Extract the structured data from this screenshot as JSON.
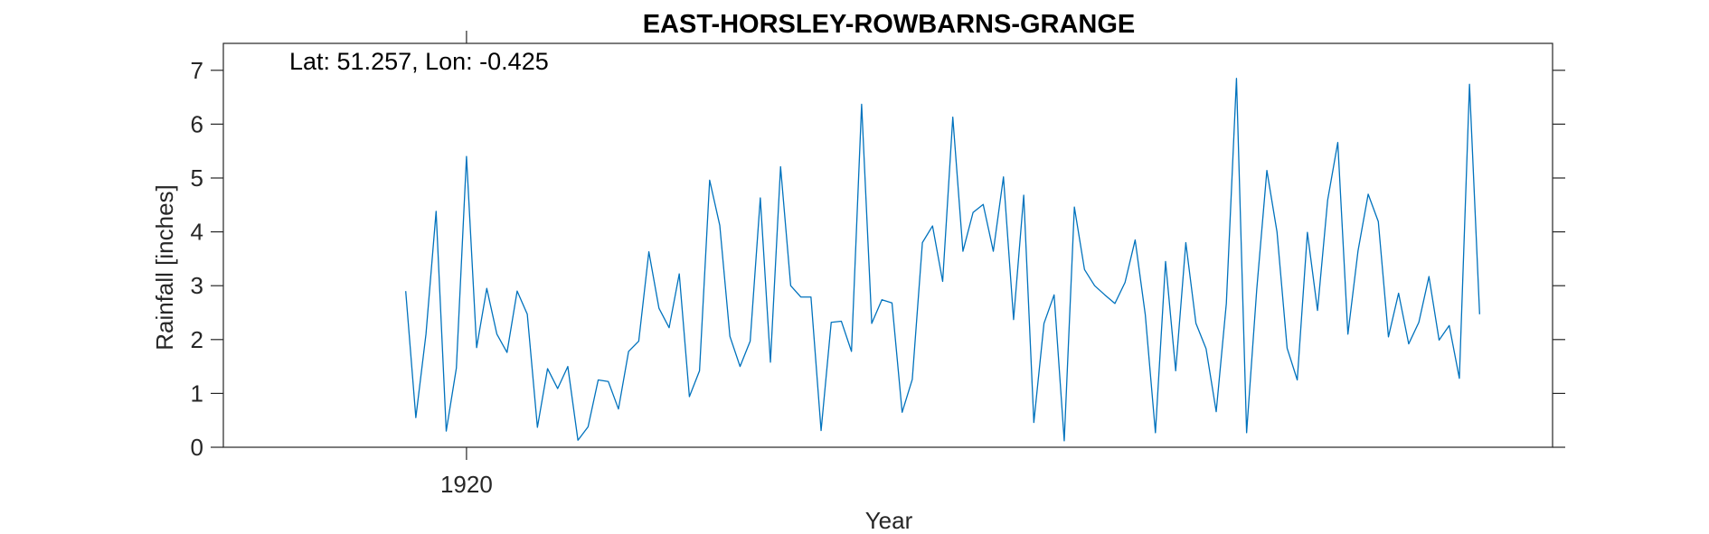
{
  "chart_data": {
    "type": "line",
    "title": "EAST-HORSLEY-ROWBARNS-GRANGE",
    "annotation": "Lat: 51.257, Lon: -0.425",
    "xlabel": "Year",
    "ylabel": "Rainfall [inches]",
    "xlim": [
      1914.0,
      1946.8
    ],
    "ylim": [
      0,
      7.5
    ],
    "x_ticks": [
      1920
    ],
    "x_tick_labels": [
      "1920"
    ],
    "y_ticks": [
      0,
      1,
      2,
      3,
      4,
      5,
      6,
      7
    ],
    "y_tick_labels": [
      "0",
      "1",
      "2",
      "3",
      "4",
      "5",
      "6",
      "7"
    ],
    "grid": false,
    "legend": "none",
    "series": [
      {
        "color": "#0072BD",
        "x": [
          1918.5,
          1918.75,
          1919.0,
          1919.25,
          1919.5,
          1919.75,
          1920.0,
          1920.25,
          1920.5,
          1920.75,
          1921.0,
          1921.25,
          1921.5,
          1921.75,
          1922.0,
          1922.25,
          1922.5,
          1922.75,
          1923.0,
          1923.25,
          1923.5,
          1923.75,
          1924.0,
          1924.25,
          1924.5,
          1924.75,
          1925.0,
          1925.25,
          1925.5,
          1925.75,
          1926.0,
          1926.25,
          1926.5,
          1926.75,
          1927.0,
          1927.25,
          1927.5,
          1927.75,
          1928.0,
          1928.25,
          1928.5,
          1928.75,
          1929.0,
          1929.25,
          1929.5,
          1929.75,
          1930.0,
          1930.25,
          1930.5,
          1930.75,
          1931.0,
          1931.25,
          1931.5,
          1931.75,
          1932.0,
          1932.25,
          1932.5,
          1932.75,
          1933.0,
          1933.25,
          1933.5,
          1933.75,
          1934.0,
          1934.25,
          1934.5,
          1934.75,
          1935.0,
          1935.25,
          1935.5,
          1935.75,
          1936.0,
          1936.25,
          1936.5,
          1936.75,
          1937.0,
          1937.25,
          1937.5,
          1937.75,
          1938.0,
          1938.25,
          1938.5,
          1938.75,
          1939.0,
          1939.25,
          1939.5,
          1939.75,
          1940.0,
          1940.25,
          1940.5,
          1940.75,
          1941.0,
          1941.25,
          1941.5,
          1941.75,
          1942.0,
          1942.25,
          1942.5,
          1942.75,
          1943.0,
          1943.25,
          1943.5,
          1943.75,
          1944.0,
          1944.25,
          1944.5,
          1944.75,
          1945.0
        ],
        "values": [
          2.9,
          0.55,
          2.1,
          4.38,
          0.3,
          1.47,
          5.4,
          1.85,
          2.95,
          2.1,
          1.76,
          2.9,
          2.47,
          0.37,
          1.46,
          1.09,
          1.5,
          0.13,
          0.38,
          1.25,
          1.22,
          0.71,
          1.78,
          1.97,
          3.63,
          2.58,
          2.22,
          3.22,
          0.94,
          1.42,
          4.96,
          4.12,
          2.06,
          1.5,
          1.97,
          4.63,
          1.58,
          5.21,
          3.0,
          2.79,
          2.79,
          0.31,
          2.32,
          2.34,
          1.78,
          6.37,
          2.3,
          2.74,
          2.68,
          0.65,
          1.26,
          3.8,
          4.11,
          3.08,
          6.13,
          3.64,
          4.36,
          4.51,
          3.64,
          5.02,
          2.37,
          4.68,
          0.46,
          2.3,
          2.83,
          0.12,
          4.46,
          3.3,
          3.0,
          2.83,
          2.67,
          3.06,
          3.85,
          2.46,
          0.27,
          3.45,
          1.42,
          3.8,
          2.3,
          1.83,
          0.66,
          2.67,
          6.85,
          0.27,
          2.93,
          5.14,
          4.0,
          1.84,
          1.25,
          3.99,
          2.54,
          4.59,
          5.66,
          2.1,
          3.65,
          4.7,
          4.19,
          2.05,
          2.86,
          1.92,
          2.32,
          3.17,
          1.99,
          2.26,
          1.28,
          6.74,
          2.47
        ]
      }
    ]
  }
}
